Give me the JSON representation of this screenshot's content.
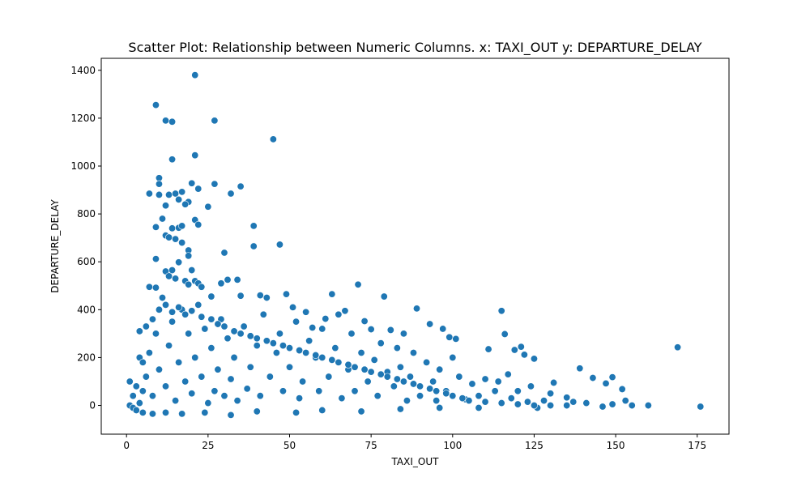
{
  "chart_data": {
    "type": "scatter",
    "title": "Scatter Plot: Relationship between Numeric Columns. x: TAXI_OUT y: DEPARTURE_DELAY",
    "xlabel": "TAXI_OUT",
    "ylabel": "DEPARTURE_DELAY",
    "xlim": [
      -7.75,
      184.75
    ],
    "ylim": [
      -120,
      1450
    ],
    "xticks": [
      0,
      25,
      50,
      75,
      100,
      125,
      150,
      175
    ],
    "yticks": [
      0,
      200,
      400,
      600,
      800,
      1000,
      1200,
      1400
    ],
    "grid": false,
    "legend": "none",
    "point_color": "#1f77b4",
    "point_edge_color": "#ffffff",
    "series": [
      {
        "points": [
          [
            21,
            1380
          ],
          [
            9,
            1255
          ],
          [
            12,
            1190
          ],
          [
            14,
            1185
          ],
          [
            27,
            1190
          ],
          [
            45,
            1112
          ],
          [
            14,
            1028
          ],
          [
            21,
            1045
          ],
          [
            10,
            950
          ],
          [
            10,
            925
          ],
          [
            20,
            928
          ],
          [
            27,
            925
          ],
          [
            22,
            905
          ],
          [
            35,
            915
          ],
          [
            7,
            885
          ],
          [
            10,
            880
          ],
          [
            13,
            880
          ],
          [
            15,
            885
          ],
          [
            17,
            892
          ],
          [
            19,
            850
          ],
          [
            16,
            860
          ],
          [
            32,
            885
          ],
          [
            12,
            835
          ],
          [
            18,
            840
          ],
          [
            25,
            830
          ],
          [
            39,
            750
          ],
          [
            11,
            780
          ],
          [
            21,
            775
          ],
          [
            22,
            755
          ],
          [
            9,
            745
          ],
          [
            14,
            740
          ],
          [
            16,
            742
          ],
          [
            17,
            750
          ],
          [
            12,
            710
          ],
          [
            13,
            702
          ],
          [
            15,
            695
          ],
          [
            17,
            680
          ],
          [
            39,
            665
          ],
          [
            47,
            672
          ],
          [
            30,
            638
          ],
          [
            19,
            648
          ],
          [
            19,
            625
          ],
          [
            9,
            612
          ],
          [
            16,
            598
          ],
          [
            12,
            560
          ],
          [
            14,
            565
          ],
          [
            20,
            565
          ],
          [
            13,
            540
          ],
          [
            15,
            530
          ],
          [
            18,
            520
          ],
          [
            21,
            520
          ],
          [
            22,
            510
          ],
          [
            23,
            495
          ],
          [
            29,
            510
          ],
          [
            31,
            525
          ],
          [
            34,
            525
          ],
          [
            19,
            505
          ],
          [
            7,
            495
          ],
          [
            9,
            492
          ],
          [
            63,
            465
          ],
          [
            71,
            505
          ],
          [
            49,
            465
          ],
          [
            79,
            455
          ],
          [
            41,
            460
          ],
          [
            26,
            455
          ],
          [
            43,
            450
          ],
          [
            35,
            458
          ],
          [
            89,
            405
          ],
          [
            115,
            395
          ],
          [
            67,
            395
          ],
          [
            55,
            390
          ],
          [
            51,
            410
          ],
          [
            61,
            362
          ],
          [
            57,
            325
          ],
          [
            65,
            380
          ],
          [
            73,
            352
          ],
          [
            75,
            318
          ],
          [
            81,
            315
          ],
          [
            85,
            300
          ],
          [
            93,
            340
          ],
          [
            97,
            320
          ],
          [
            99,
            285
          ],
          [
            101,
            278
          ],
          [
            116,
            298
          ],
          [
            111,
            235
          ],
          [
            121,
            245
          ],
          [
            125,
            195
          ],
          [
            119,
            232
          ],
          [
            122,
            212
          ],
          [
            131,
            95
          ],
          [
            139,
            155
          ],
          [
            143,
            115
          ],
          [
            147,
            92
          ],
          [
            149,
            118
          ],
          [
            152,
            68
          ],
          [
            169,
            243
          ],
          [
            149,
            5
          ],
          [
            153,
            20
          ],
          [
            155,
            0
          ],
          [
            160,
            0
          ],
          [
            176,
            -5
          ],
          [
            146,
            -5
          ],
          [
            141,
            10
          ],
          [
            137,
            15
          ],
          [
            135,
            33
          ],
          [
            130,
            50
          ],
          [
            128,
            20
          ],
          [
            126,
            -10
          ],
          [
            124,
            80
          ],
          [
            123,
            15
          ],
          [
            120,
            60
          ],
          [
            118,
            30
          ],
          [
            117,
            130
          ],
          [
            114,
            100
          ],
          [
            113,
            60
          ],
          [
            110,
            110
          ],
          [
            108,
            40
          ],
          [
            106,
            90
          ],
          [
            104,
            25
          ],
          [
            102,
            120
          ],
          [
            100,
            200
          ],
          [
            98,
            60
          ],
          [
            96,
            150
          ],
          [
            95,
            20
          ],
          [
            94,
            100
          ],
          [
            92,
            180
          ],
          [
            90,
            40
          ],
          [
            88,
            220
          ],
          [
            87,
            120
          ],
          [
            86,
            20
          ],
          [
            84,
            160
          ],
          [
            83,
            240
          ],
          [
            82,
            80
          ],
          [
            80,
            140
          ],
          [
            78,
            260
          ],
          [
            77,
            40
          ],
          [
            76,
            190
          ],
          [
            74,
            100
          ],
          [
            72,
            220
          ],
          [
            70,
            60
          ],
          [
            69,
            300
          ],
          [
            68,
            150
          ],
          [
            66,
            30
          ],
          [
            64,
            240
          ],
          [
            62,
            120
          ],
          [
            60,
            320
          ],
          [
            59,
            60
          ],
          [
            58,
            200
          ],
          [
            56,
            270
          ],
          [
            54,
            100
          ],
          [
            53,
            30
          ],
          [
            52,
            350
          ],
          [
            50,
            160
          ],
          [
            48,
            60
          ],
          [
            47,
            300
          ],
          [
            46,
            220
          ],
          [
            44,
            120
          ],
          [
            42,
            380
          ],
          [
            41,
            40
          ],
          [
            40,
            250
          ],
          [
            38,
            160
          ],
          [
            37,
            70
          ],
          [
            36,
            330
          ],
          [
            34,
            20
          ],
          [
            33,
            200
          ],
          [
            32,
            110
          ],
          [
            31,
            280
          ],
          [
            30,
            40
          ],
          [
            29,
            360
          ],
          [
            28,
            150
          ],
          [
            27,
            60
          ],
          [
            26,
            240
          ],
          [
            25,
            10
          ],
          [
            24,
            320
          ],
          [
            23,
            120
          ],
          [
            22,
            420
          ],
          [
            21,
            200
          ],
          [
            20,
            50
          ],
          [
            19,
            300
          ],
          [
            18,
            100
          ],
          [
            17,
            400
          ],
          [
            16,
            180
          ],
          [
            15,
            20
          ],
          [
            14,
            350
          ],
          [
            13,
            250
          ],
          [
            12,
            80
          ],
          [
            11,
            450
          ],
          [
            10,
            150
          ],
          [
            9,
            300
          ],
          [
            8,
            40
          ],
          [
            7,
            220
          ],
          [
            6,
            120
          ],
          [
            5,
            60
          ],
          [
            4,
            10
          ],
          [
            3,
            80
          ],
          [
            2,
            40
          ],
          [
            1,
            100
          ],
          [
            1,
            0
          ],
          [
            2,
            -10
          ],
          [
            3,
            -20
          ],
          [
            5,
            -30
          ],
          [
            8,
            -35
          ],
          [
            12,
            -30
          ],
          [
            17,
            -35
          ],
          [
            24,
            -30
          ],
          [
            32,
            -40
          ],
          [
            40,
            -25
          ],
          [
            52,
            -30
          ],
          [
            60,
            -20
          ],
          [
            72,
            -25
          ],
          [
            84,
            -15
          ],
          [
            96,
            -10
          ],
          [
            108,
            -10
          ],
          [
            4,
            200
          ],
          [
            4,
            310
          ],
          [
            6,
            330
          ],
          [
            5,
            180
          ],
          [
            8,
            360
          ],
          [
            10,
            400
          ],
          [
            12,
            420
          ],
          [
            14,
            390
          ],
          [
            16,
            410
          ],
          [
            18,
            380
          ],
          [
            20,
            395
          ],
          [
            23,
            370
          ],
          [
            26,
            360
          ],
          [
            28,
            340
          ],
          [
            30,
            330
          ],
          [
            33,
            310
          ],
          [
            35,
            300
          ],
          [
            38,
            290
          ],
          [
            40,
            280
          ],
          [
            43,
            270
          ],
          [
            45,
            260
          ],
          [
            48,
            250
          ],
          [
            50,
            240
          ],
          [
            53,
            230
          ],
          [
            55,
            220
          ],
          [
            58,
            210
          ],
          [
            60,
            200
          ],
          [
            63,
            190
          ],
          [
            65,
            180
          ],
          [
            68,
            170
          ],
          [
            70,
            160
          ],
          [
            73,
            150
          ],
          [
            75,
            140
          ],
          [
            78,
            130
          ],
          [
            80,
            120
          ],
          [
            83,
            110
          ],
          [
            85,
            100
          ],
          [
            88,
            90
          ],
          [
            90,
            80
          ],
          [
            93,
            70
          ],
          [
            95,
            60
          ],
          [
            98,
            50
          ],
          [
            100,
            40
          ],
          [
            103,
            30
          ],
          [
            105,
            20
          ],
          [
            110,
            15
          ],
          [
            115,
            10
          ],
          [
            120,
            5
          ],
          [
            125,
            0
          ],
          [
            130,
            0
          ],
          [
            135,
            0
          ]
        ]
      }
    ]
  }
}
